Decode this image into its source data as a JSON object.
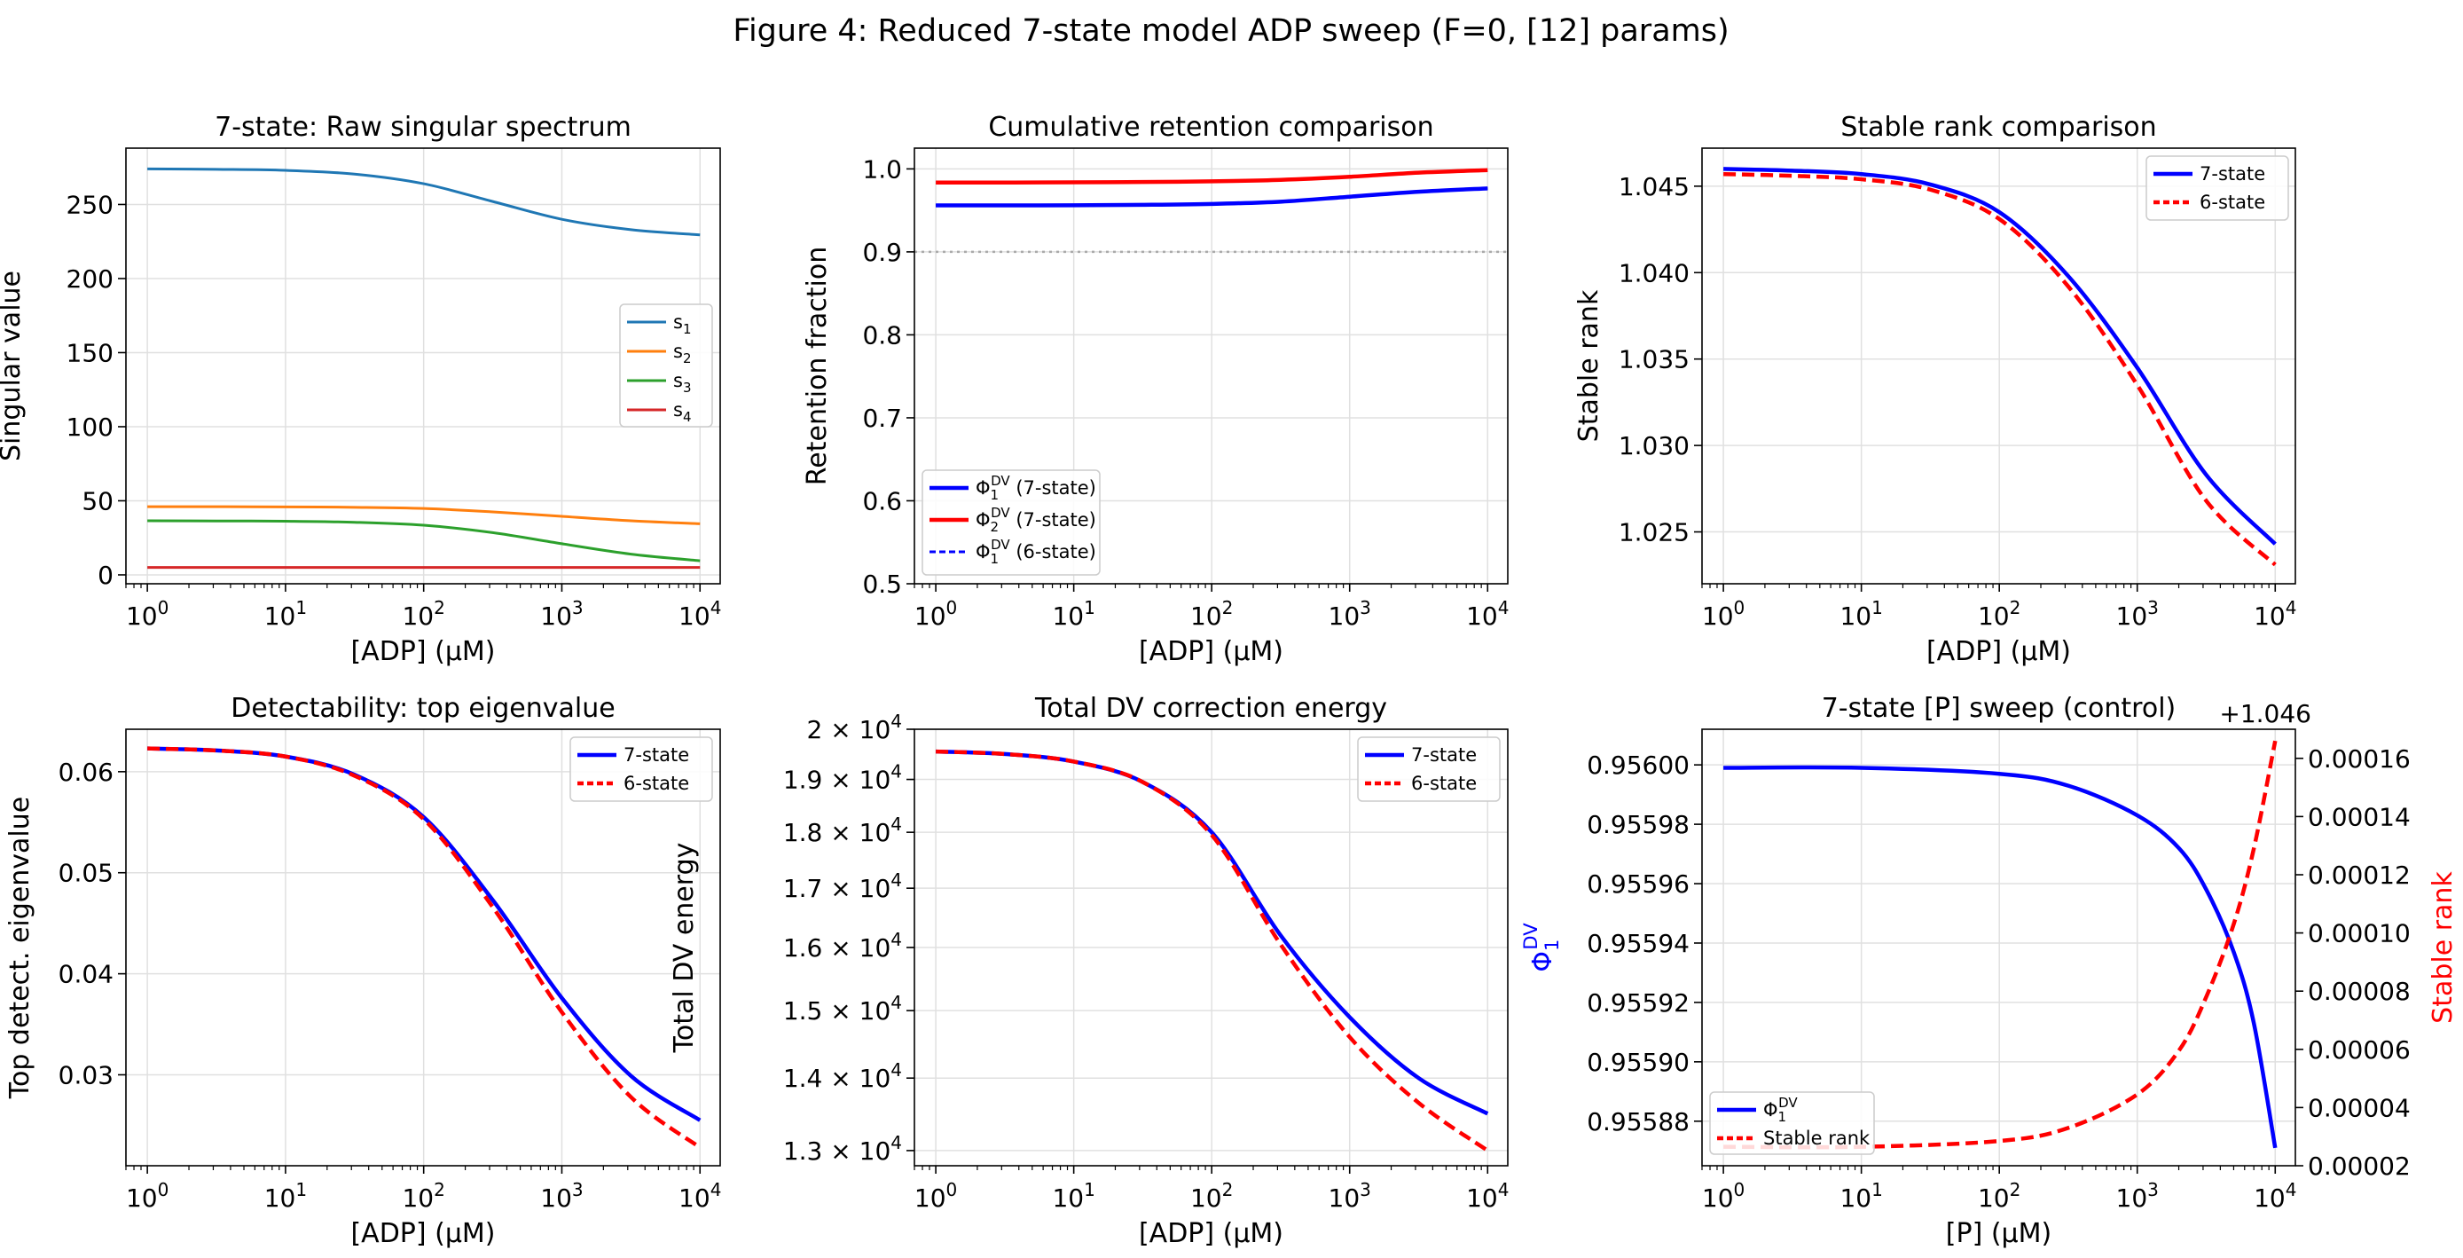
{
  "figure_title": "Figure 4: Reduced 7-state model ADP sweep (F=0, [12] params)",
  "chart_data": [
    {
      "id": "p1",
      "type": "line",
      "title": "7-state: Raw singular spectrum",
      "xlabel": "[ADP] (µM)",
      "ylabel": "Singular value",
      "xscale": "log",
      "xlim": [
        0.7,
        14000
      ],
      "ylim": [
        -6,
        288
      ],
      "xticks": [
        {
          "v": 1,
          "base": "10",
          "exp": "0"
        },
        {
          "v": 10,
          "base": "10",
          "exp": "1"
        },
        {
          "v": 100,
          "base": "10",
          "exp": "2"
        },
        {
          "v": 1000,
          "base": "10",
          "exp": "3"
        },
        {
          "v": 10000,
          "base": "10",
          "exp": "4"
        }
      ],
      "yticks": [
        {
          "v": 0,
          "label": "0"
        },
        {
          "v": 50,
          "label": "50"
        },
        {
          "v": 100,
          "label": "100"
        },
        {
          "v": 150,
          "label": "150"
        },
        {
          "v": 200,
          "label": "200"
        },
        {
          "v": 250,
          "label": "250"
        }
      ],
      "legend": "center-right",
      "x": [
        1,
        3.16,
        10,
        31.6,
        100,
        316,
        1000,
        3162,
        10000
      ],
      "series": [
        {
          "name": "s",
          "sub": "1",
          "color": "#1f77b4",
          "dash": "solid",
          "width": 3,
          "values": [
            274,
            273.7,
            273,
            270.5,
            264,
            252,
            240,
            233,
            229.5
          ]
        },
        {
          "name": "s",
          "sub": "2",
          "color": "#ff7f0e",
          "dash": "solid",
          "width": 3,
          "values": [
            46,
            46,
            45.9,
            45.6,
            44.8,
            42.5,
            39.5,
            36.5,
            34.5
          ]
        },
        {
          "name": "s",
          "sub": "3",
          "color": "#2ca02c",
          "dash": "solid",
          "width": 3,
          "values": [
            36.5,
            36.4,
            36.2,
            35.5,
            33.5,
            28.5,
            21,
            14,
            9.5
          ]
        },
        {
          "name": "s",
          "sub": "4",
          "color": "#d62728",
          "dash": "solid",
          "width": 3,
          "values": [
            5,
            5,
            5,
            5,
            5,
            5,
            5,
            5,
            5
          ]
        }
      ]
    },
    {
      "id": "p2",
      "type": "line",
      "title": "Cumulative retention comparison",
      "xlabel": "[ADP] (µM)",
      "ylabel": "Retention fraction",
      "xscale": "log",
      "xlim": [
        0.7,
        14000
      ],
      "ylim": [
        0.5,
        1.025
      ],
      "xticks": [
        {
          "v": 1,
          "base": "10",
          "exp": "0"
        },
        {
          "v": 10,
          "base": "10",
          "exp": "1"
        },
        {
          "v": 100,
          "base": "10",
          "exp": "2"
        },
        {
          "v": 1000,
          "base": "10",
          "exp": "3"
        },
        {
          "v": 10000,
          "base": "10",
          "exp": "4"
        }
      ],
      "yticks": [
        {
          "v": 0.5,
          "label": "0.5"
        },
        {
          "v": 0.6,
          "label": "0.6"
        },
        {
          "v": 0.7,
          "label": "0.7"
        },
        {
          "v": 0.8,
          "label": "0.8"
        },
        {
          "v": 0.9,
          "label": "0.9"
        },
        {
          "v": 1.0,
          "label": "1.0"
        }
      ],
      "hline": {
        "y": 0.9,
        "color": "#aaaaaa"
      },
      "legend": "lower-left",
      "x": [
        1,
        3.16,
        10,
        31.6,
        100,
        316,
        1000,
        3162,
        10000
      ],
      "series": [
        {
          "name": "Φ",
          "sub": "1",
          "sup": "DV",
          "suffix": " (7-state)",
          "color": "#0000ff",
          "dash": "solid",
          "width": 4.5,
          "values": [
            0.956,
            0.956,
            0.9562,
            0.9567,
            0.9578,
            0.9605,
            0.9665,
            0.9725,
            0.9765
          ]
        },
        {
          "name": "Φ",
          "sub": "2",
          "sup": "DV",
          "suffix": " (7-state)",
          "color": "#ff0000",
          "dash": "solid",
          "width": 4.5,
          "values": [
            0.9835,
            0.9836,
            0.9838,
            0.9842,
            0.985,
            0.9868,
            0.9905,
            0.9955,
            0.9985
          ]
        },
        {
          "name": "Φ",
          "sub": "1",
          "sup": "DV",
          "suffix": " (6-state)",
          "color": "#0000ff",
          "dash": "dashed",
          "width": 3,
          "values": [
            0.956,
            0.956,
            0.9562,
            0.9567,
            0.9578,
            0.9605,
            0.9665,
            0.9725,
            0.9765
          ]
        }
      ]
    },
    {
      "id": "p3",
      "type": "line",
      "title": "Stable rank comparison",
      "xlabel": "[ADP] (µM)",
      "ylabel": "Stable rank",
      "xscale": "log",
      "xlim": [
        0.7,
        14000
      ],
      "ylim": [
        1.022,
        1.0472
      ],
      "xticks": [
        {
          "v": 1,
          "base": "10",
          "exp": "0"
        },
        {
          "v": 10,
          "base": "10",
          "exp": "1"
        },
        {
          "v": 100,
          "base": "10",
          "exp": "2"
        },
        {
          "v": 1000,
          "base": "10",
          "exp": "3"
        },
        {
          "v": 10000,
          "base": "10",
          "exp": "4"
        }
      ],
      "yticks": [
        {
          "v": 1.025,
          "label": "1.025"
        },
        {
          "v": 1.03,
          "label": "1.030"
        },
        {
          "v": 1.035,
          "label": "1.035"
        },
        {
          "v": 1.04,
          "label": "1.040"
        },
        {
          "v": 1.045,
          "label": "1.045"
        }
      ],
      "legend": "upper-right",
      "x": [
        1,
        3.16,
        10,
        31.6,
        100,
        316,
        1000,
        3162,
        10000
      ],
      "series": [
        {
          "name": "7-state",
          "color": "#0000ff",
          "dash": "solid",
          "width": 4.5,
          "values": [
            1.046,
            1.0459,
            1.0457,
            1.0451,
            1.0435,
            1.0398,
            1.0345,
            1.0283,
            1.0243
          ]
        },
        {
          "name": "6-state",
          "color": "#ff0000",
          "dash": "dashed",
          "width": 4.5,
          "values": [
            1.0457,
            1.0456,
            1.0454,
            1.0448,
            1.0431,
            1.0392,
            1.0335,
            1.0268,
            1.0231
          ]
        }
      ]
    },
    {
      "id": "p4",
      "type": "line",
      "title": "Detectability: top eigenvalue",
      "xlabel": "[ADP] (µM)",
      "ylabel": "Top detect. eigenvalue",
      "xscale": "log",
      "xlim": [
        0.7,
        14000
      ],
      "ylim": [
        0.021,
        0.0642
      ],
      "xticks": [
        {
          "v": 1,
          "base": "10",
          "exp": "0"
        },
        {
          "v": 10,
          "base": "10",
          "exp": "1"
        },
        {
          "v": 100,
          "base": "10",
          "exp": "2"
        },
        {
          "v": 1000,
          "base": "10",
          "exp": "3"
        },
        {
          "v": 10000,
          "base": "10",
          "exp": "4"
        }
      ],
      "yticks": [
        {
          "v": 0.03,
          "label": "0.03"
        },
        {
          "v": 0.04,
          "label": "0.04"
        },
        {
          "v": 0.05,
          "label": "0.05"
        },
        {
          "v": 0.06,
          "label": "0.06"
        }
      ],
      "legend": "upper-right",
      "x": [
        1,
        3.16,
        10,
        31.6,
        100,
        316,
        1000,
        3162,
        10000
      ],
      "series": [
        {
          "name": "7-state",
          "color": "#0000ff",
          "dash": "solid",
          "width": 4.5,
          "values": [
            0.0623,
            0.0621,
            0.0615,
            0.0597,
            0.0555,
            0.0473,
            0.0376,
            0.0299,
            0.0255
          ]
        },
        {
          "name": "6-state",
          "color": "#ff0000",
          "dash": "dashed",
          "width": 4.5,
          "values": [
            0.0623,
            0.0621,
            0.0615,
            0.0596,
            0.0553,
            0.0466,
            0.0362,
            0.0278,
            0.0228
          ]
        }
      ]
    },
    {
      "id": "p5",
      "type": "line",
      "title": "Total DV correction energy",
      "xlabel": "[ADP] (µM)",
      "ylabel": "Total DV energy",
      "xscale": "log",
      "yscale": "log",
      "xlim": [
        0.7,
        14000
      ],
      "ylim": [
        12800,
        20000
      ],
      "xticks": [
        {
          "v": 1,
          "base": "10",
          "exp": "0"
        },
        {
          "v": 10,
          "base": "10",
          "exp": "1"
        },
        {
          "v": 100,
          "base": "10",
          "exp": "2"
        },
        {
          "v": 1000,
          "base": "10",
          "exp": "3"
        },
        {
          "v": 10000,
          "base": "10",
          "exp": "4"
        }
      ],
      "yticks": [
        {
          "v": 13000,
          "mant": "1.3",
          "base": "10",
          "exp": "4"
        },
        {
          "v": 14000,
          "mant": "1.4",
          "base": "10",
          "exp": "4"
        },
        {
          "v": 15000,
          "mant": "1.5",
          "base": "10",
          "exp": "4"
        },
        {
          "v": 16000,
          "mant": "1.6",
          "base": "10",
          "exp": "4"
        },
        {
          "v": 17000,
          "mant": "1.7",
          "base": "10",
          "exp": "4"
        },
        {
          "v": 18000,
          "mant": "1.8",
          "base": "10",
          "exp": "4"
        },
        {
          "v": 19000,
          "mant": "1.9",
          "base": "10",
          "exp": "4"
        },
        {
          "v": 20000,
          "mant": "2",
          "base": "10",
          "exp": "4"
        }
      ],
      "legend": "upper-right",
      "x": [
        1,
        3.16,
        10,
        31.6,
        100,
        316,
        1000,
        3162,
        10000
      ],
      "series": [
        {
          "name": "7-state",
          "color": "#0000ff",
          "dash": "solid",
          "width": 4.5,
          "values": [
            19550,
            19500,
            19350,
            18950,
            18000,
            16200,
            14900,
            14000,
            13500
          ]
        },
        {
          "name": "6-state",
          "color": "#ff0000",
          "dash": "dashed",
          "width": 4.5,
          "values": [
            19550,
            19500,
            19350,
            18950,
            17950,
            16050,
            14600,
            13650,
            13000
          ]
        }
      ]
    },
    {
      "id": "p6",
      "type": "line",
      "title": "7-state [P] sweep (control)",
      "xlabel": "[P] (µM)",
      "ylabel": "Φ",
      "ylabel_sub": "1",
      "ylabel_sup": "DV",
      "ylabel_color": "#0000ff",
      "y2label": "Stable rank",
      "y2label_color": "#ff0000",
      "y2_offset": "+1.046",
      "xscale": "log",
      "xlim": [
        0.7,
        14000
      ],
      "ylim": [
        0.955865,
        0.956012
      ],
      "y2lim": [
        2e-05,
        0.00017
      ],
      "xticks": [
        {
          "v": 1,
          "base": "10",
          "exp": "0"
        },
        {
          "v": 10,
          "base": "10",
          "exp": "1"
        },
        {
          "v": 100,
          "base": "10",
          "exp": "2"
        },
        {
          "v": 1000,
          "base": "10",
          "exp": "3"
        },
        {
          "v": 10000,
          "base": "10",
          "exp": "4"
        }
      ],
      "yticks": [
        {
          "v": 0.95588,
          "label": "0.95588"
        },
        {
          "v": 0.9559,
          "label": "0.95590"
        },
        {
          "v": 0.95592,
          "label": "0.95592"
        },
        {
          "v": 0.95594,
          "label": "0.95594"
        },
        {
          "v": 0.95596,
          "label": "0.95596"
        },
        {
          "v": 0.95598,
          "label": "0.95598"
        },
        {
          "v": 0.956,
          "label": "0.95600"
        }
      ],
      "y2ticks": [
        {
          "v": 2e-05,
          "label": "0.00002"
        },
        {
          "v": 4e-05,
          "label": "0.00004"
        },
        {
          "v": 6e-05,
          "label": "0.00006"
        },
        {
          "v": 8e-05,
          "label": "0.00008"
        },
        {
          "v": 0.0001,
          "label": "0.00010"
        },
        {
          "v": 0.00012,
          "label": "0.00012"
        },
        {
          "v": 0.00014,
          "label": "0.00014"
        },
        {
          "v": 0.00016,
          "label": "0.00016"
        }
      ],
      "legend": "lower-left",
      "x": [
        1,
        10,
        100,
        316,
        1000,
        2000,
        3162,
        5000,
        7000,
        10000
      ],
      "series": [
        {
          "name": "Φ",
          "sub": "1",
          "sup": "DV",
          "axis": "left",
          "color": "#0000ff",
          "dash": "solid",
          "width": 4.5,
          "values": [
            0.955999,
            0.955999,
            0.955997,
            0.955993,
            0.955983,
            0.955972,
            0.955958,
            0.955937,
            0.955913,
            0.955871
          ]
        },
        {
          "name": "Stable rank",
          "axis": "right",
          "color": "#ff0000",
          "dash": "dashed",
          "width": 4.5,
          "values": [
            2.65e-05,
            2.65e-05,
            2.85e-05,
            3.3e-05,
            4.45e-05,
            5.95e-05,
            7.8e-05,
            0.000103,
            0.000129,
            0.000166
          ]
        }
      ]
    }
  ]
}
